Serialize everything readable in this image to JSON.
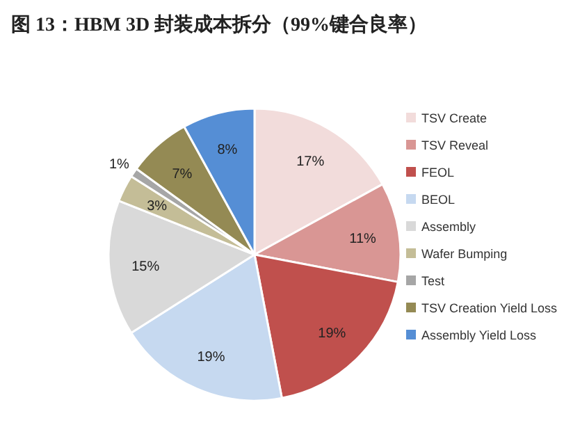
{
  "chart_data": {
    "type": "pie",
    "title": "图 13：HBM 3D 封装成本拆分（99%键合良率）",
    "categories": [
      "TSV Create",
      "TSV Reveal",
      "FEOL",
      "BEOL",
      "Assembly",
      "Wafer Bumping",
      "Test",
      "TSV Creation Yield Loss",
      "Assembly Yield Loss"
    ],
    "values": [
      17,
      11,
      19,
      19,
      15,
      3,
      1,
      7,
      8
    ],
    "colors": [
      "#f2dcdb",
      "#d99694",
      "#c0504d",
      "#c6d9f0",
      "#d9d9d9",
      "#c4bd97",
      "#a6a6a6",
      "#948a54",
      "#558ed5"
    ],
    "value_labels": [
      "17%",
      "11%",
      "19%",
      "19%",
      "15%",
      "3%",
      "1%",
      "7%",
      "8%"
    ],
    "legend": "right"
  }
}
